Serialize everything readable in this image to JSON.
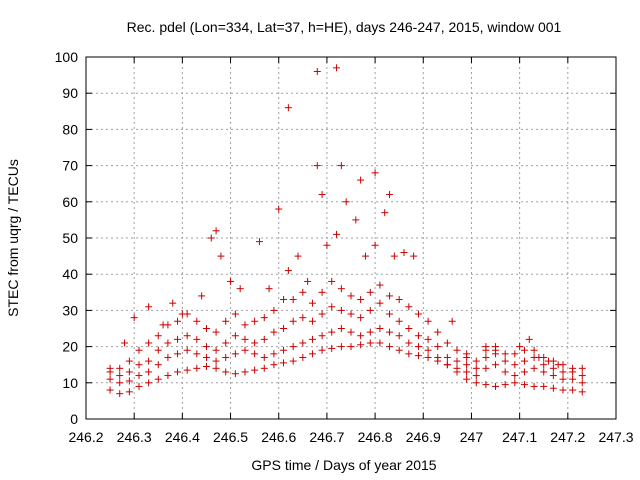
{
  "chart_data": {
    "type": "scatter",
    "title": "Rec. pdel (Lon=334, Lat=37, h=HE), days 246-247, 2015, window 001",
    "xlabel": "GPS time / Days of year 2015",
    "ylabel": "STEC from uqrg / TECUs",
    "xlim": [
      246.2,
      247.3
    ],
    "ylim": [
      0,
      100
    ],
    "xticks": [
      "246.2",
      "246.3",
      "246.4",
      "246.5",
      "246.6",
      "246.7",
      "246.8",
      "246.9",
      "247",
      "247.1",
      "247.2",
      "247.3"
    ],
    "yticks": [
      "0",
      "10",
      "20",
      "30",
      "40",
      "50",
      "60",
      "70",
      "80",
      "90",
      "100"
    ],
    "grid": true,
    "marker": "plus",
    "color": "#cc0000",
    "series": [
      {
        "x": [
          246.25,
          246.27,
          246.29,
          246.31,
          246.33,
          246.35,
          246.37,
          246.39,
          246.41,
          246.43,
          246.45,
          246.47,
          246.49,
          246.51,
          246.53,
          246.55,
          246.57,
          246.59,
          246.61,
          246.63,
          246.65,
          246.67,
          246.69,
          246.71,
          246.73,
          246.75,
          246.77,
          246.79,
          246.81,
          246.83,
          246.85,
          246.87,
          246.89,
          246.91,
          246.93,
          246.95,
          246.97,
          246.99,
          247.01,
          247.03,
          247.05,
          247.07,
          247.09,
          247.11,
          247.13,
          247.15,
          247.17,
          247.19,
          247.21,
          247.23
        ],
        "y": [
          8,
          7,
          7.5,
          9,
          10,
          11,
          12,
          13,
          13.5,
          14,
          14.5,
          14,
          13,
          12.5,
          13,
          13.5,
          14,
          15,
          15.5,
          16,
          17,
          18,
          19,
          19.5,
          20,
          20,
          20.5,
          21,
          21,
          20,
          19,
          18,
          17.5,
          17,
          16,
          15,
          13,
          11,
          10,
          9.5,
          9,
          9.5,
          10,
          9.5,
          9,
          9,
          8.5,
          8,
          8,
          7.5
        ]
      },
      {
        "x": [
          246.25,
          246.27,
          246.29,
          246.31,
          246.33,
          246.35,
          246.37,
          246.39,
          246.41,
          246.43,
          246.45,
          246.47,
          246.49,
          246.51,
          246.53,
          246.55,
          246.57,
          246.59,
          246.61,
          246.63,
          246.65,
          246.67,
          246.69,
          246.71,
          246.73,
          246.75,
          246.77,
          246.79,
          246.81,
          246.83,
          246.85,
          246.87,
          246.89,
          246.91,
          246.93,
          246.95,
          246.97,
          246.99,
          247.01,
          247.03,
          247.05,
          247.07,
          247.09,
          247.11,
          247.13,
          247.15,
          247.17,
          247.19,
          247.21,
          247.23
        ],
        "y": [
          11,
          10,
          10.5,
          12,
          13,
          15,
          17,
          18,
          19,
          18,
          17,
          16,
          17,
          18,
          19,
          18,
          17,
          18,
          19,
          20,
          21,
          22,
          23,
          24,
          25,
          24,
          23,
          24,
          25,
          24,
          23,
          21,
          20,
          19,
          17,
          15,
          14,
          13,
          12,
          14,
          15,
          13,
          12,
          13,
          14,
          13,
          12,
          11,
          11,
          10
        ]
      },
      {
        "x": [
          246.25,
          246.27,
          246.29,
          246.31,
          246.33,
          246.35,
          246.37,
          246.39,
          246.41,
          246.43,
          246.45,
          246.47,
          246.49,
          246.51,
          246.53,
          246.55,
          246.57,
          246.59,
          246.61,
          246.63,
          246.65,
          246.67,
          246.69,
          246.71,
          246.73,
          246.75,
          246.77,
          246.79,
          246.81,
          246.83,
          246.85,
          246.87,
          246.89,
          246.91,
          246.93,
          246.95,
          246.97,
          246.99,
          247.01,
          247.03,
          247.05,
          247.07,
          247.09,
          247.11,
          247.13,
          247.15,
          247.17,
          247.19,
          247.21,
          247.23
        ],
        "y": [
          13,
          12,
          13,
          15,
          16,
          19,
          21,
          22,
          23,
          22,
          20,
          19,
          21,
          23,
          22,
          21,
          22,
          24,
          25,
          27,
          28,
          27,
          29,
          31,
          30,
          29,
          28,
          30,
          32,
          29,
          27,
          25,
          23,
          22,
          20,
          17,
          16,
          15,
          14,
          17,
          18,
          16,
          15,
          16,
          17,
          15,
          14,
          13,
          13,
          12
        ]
      },
      {
        "x": [
          246.25,
          246.27,
          246.29,
          246.31,
          246.33,
          246.35,
          246.37,
          246.39,
          246.41,
          246.43,
          246.45,
          246.47,
          246.49,
          246.51,
          246.53,
          246.55,
          246.57,
          246.59,
          246.61,
          246.63,
          246.65,
          246.67,
          246.69,
          246.71,
          246.73,
          246.75,
          246.77,
          246.79,
          246.81,
          246.83,
          246.85,
          246.87,
          246.89,
          246.91,
          246.93,
          246.95,
          246.97,
          246.99,
          247.01,
          247.03,
          247.05,
          247.07,
          247.09,
          247.11,
          247.13,
          247.15,
          247.17,
          247.19,
          247.21,
          247.23
        ],
        "y": [
          14,
          14,
          16,
          19,
          21,
          23,
          26,
          27,
          29,
          27,
          25,
          24,
          27,
          29,
          26,
          27,
          28,
          30,
          33,
          33,
          35,
          32,
          35,
          38,
          36,
          34,
          33,
          35,
          37,
          34,
          33,
          31,
          29,
          27,
          24,
          21,
          19,
          17,
          16,
          19,
          20,
          18,
          18,
          19,
          19,
          17,
          16,
          15,
          14,
          14
        ]
      },
      {
        "x": [
          246.28,
          246.3,
          246.33,
          246.36,
          246.38,
          246.4,
          246.44,
          246.46,
          246.47,
          246.48,
          246.5,
          246.52,
          246.56,
          246.58,
          246.6,
          246.62,
          246.64,
          246.66,
          246.68,
          246.7,
          246.72,
          246.74,
          246.76,
          246.78,
          246.8,
          246.82,
          246.84,
          246.86,
          246.88,
          246.96,
          246.99,
          247.03,
          247.05,
          247.1,
          247.12,
          247.14,
          247.16,
          247.18
        ],
        "y": [
          21,
          28,
          31,
          26,
          32,
          29,
          34,
          50,
          52,
          45,
          38,
          36,
          49,
          36,
          58,
          41,
          45,
          38,
          70,
          48,
          51,
          60,
          55,
          45,
          48,
          57,
          45,
          46,
          45,
          27,
          18,
          20,
          19,
          20,
          22,
          17,
          16,
          15
        ]
      },
      {
        "x": [
          246.62,
          246.68,
          246.69,
          246.72,
          246.73,
          246.77,
          246.8,
          246.83
        ],
        "y": [
          86,
          96,
          62,
          97,
          70,
          66,
          68,
          62
        ]
      }
    ]
  }
}
